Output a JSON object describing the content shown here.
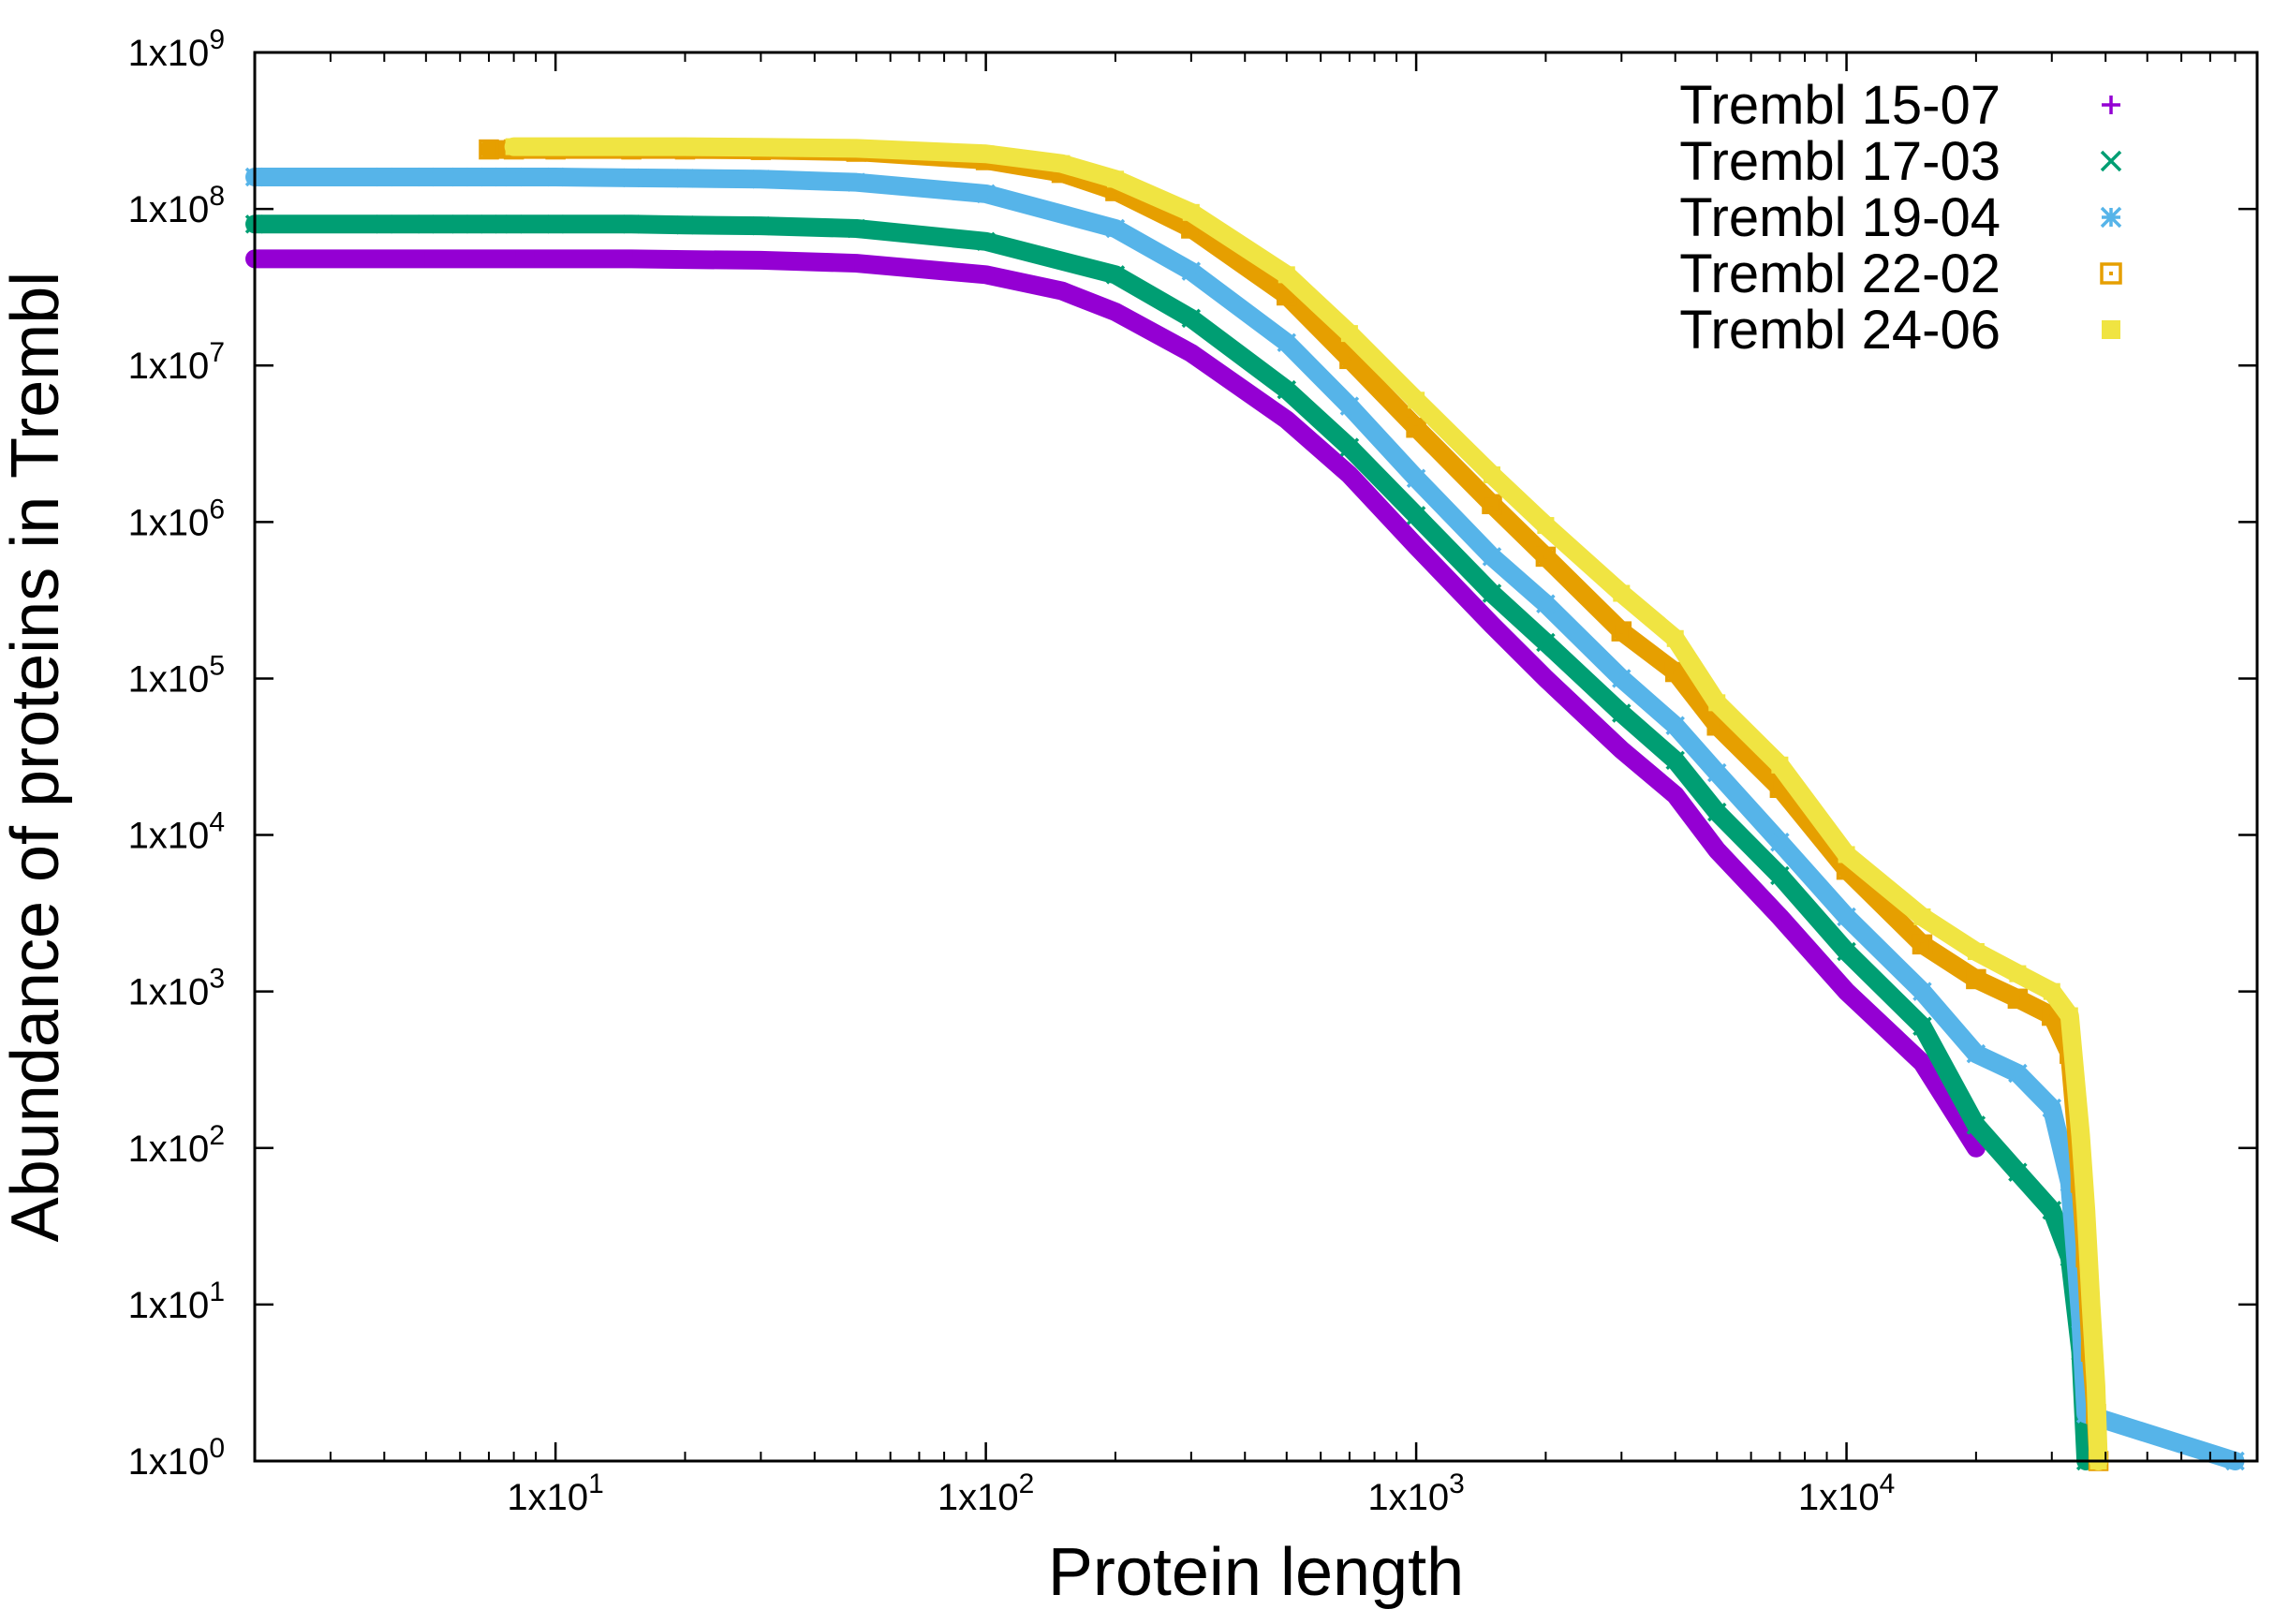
{
  "chart_data": {
    "type": "scatter",
    "title": "",
    "xlabel": "Protein length",
    "ylabel": "Abundance of proteins in Trembl",
    "xscale": "log",
    "yscale": "log",
    "xlim": [
      2,
      90000
    ],
    "ylim": [
      1,
      1000000000
    ],
    "x_ticks": [
      {
        "value": 10,
        "label": "1x10",
        "exp": "1"
      },
      {
        "value": 100,
        "label": "1x10",
        "exp": "2"
      },
      {
        "value": 1000,
        "label": "1x10",
        "exp": "3"
      },
      {
        "value": 10000,
        "label": "1x10",
        "exp": "4"
      }
    ],
    "y_ticks": [
      {
        "value": 1,
        "label": "1x10",
        "exp": "0"
      },
      {
        "value": 10,
        "label": "1x10",
        "exp": "1"
      },
      {
        "value": 100,
        "label": "1x10",
        "exp": "2"
      },
      {
        "value": 1000,
        "label": "1x10",
        "exp": "3"
      },
      {
        "value": 10000,
        "label": "1x10",
        "exp": "4"
      },
      {
        "value": 100000,
        "label": "1x10",
        "exp": "5"
      },
      {
        "value": 1000000,
        "label": "1x10",
        "exp": "6"
      },
      {
        "value": 10000000,
        "label": "1x10",
        "exp": "7"
      },
      {
        "value": 100000000,
        "label": "1x10",
        "exp": "8"
      },
      {
        "value": 1000000000,
        "label": "1x10",
        "exp": "9"
      }
    ],
    "legend_position": "top-right",
    "series": [
      {
        "name": "Trembl 15-07",
        "color": "#9400d3",
        "marker": "plus",
        "points": [
          [
            2,
            48000000
          ],
          [
            4,
            48000000
          ],
          [
            5,
            48000000
          ],
          [
            6,
            48000000
          ],
          [
            7,
            48000000
          ],
          [
            8,
            48000000
          ],
          [
            9,
            48000000
          ],
          [
            10,
            48000000
          ],
          [
            12,
            48000000
          ],
          [
            15,
            48000000
          ],
          [
            20,
            47500000
          ],
          [
            30,
            47000000
          ],
          [
            50,
            45000000
          ],
          [
            100,
            38000000
          ],
          [
            150,
            30000000
          ],
          [
            200,
            22000000
          ],
          [
            300,
            12000000
          ],
          [
            500,
            4500000
          ],
          [
            700,
            2000000
          ],
          [
            1000,
            700000
          ],
          [
            1500,
            220000
          ],
          [
            2000,
            100000
          ],
          [
            3000,
            35000
          ],
          [
            4000,
            18000
          ],
          [
            5000,
            8000
          ],
          [
            7000,
            3000
          ],
          [
            10000,
            1000
          ],
          [
            15000,
            350
          ],
          [
            20000,
            100
          ]
        ]
      },
      {
        "name": "Trembl 17-03",
        "color": "#009e73",
        "marker": "x",
        "points": [
          [
            2,
            80000000
          ],
          [
            4,
            80000000
          ],
          [
            5,
            80000000
          ],
          [
            6,
            80000000
          ],
          [
            7,
            80000000
          ],
          [
            8,
            80000000
          ],
          [
            10,
            80000000
          ],
          [
            15,
            80000000
          ],
          [
            20,
            79000000
          ],
          [
            30,
            78000000
          ],
          [
            50,
            75000000
          ],
          [
            100,
            62000000
          ],
          [
            200,
            38000000
          ],
          [
            300,
            20000000
          ],
          [
            500,
            7000000
          ],
          [
            700,
            3000000
          ],
          [
            1000,
            1100000
          ],
          [
            1500,
            350000
          ],
          [
            2000,
            170000
          ],
          [
            3000,
            60000
          ],
          [
            4000,
            30000
          ],
          [
            5000,
            14000
          ],
          [
            7000,
            5500
          ],
          [
            10000,
            1800
          ],
          [
            15000,
            600
          ],
          [
            20000,
            140
          ],
          [
            25000,
            70
          ],
          [
            30000,
            40
          ],
          [
            33000,
            20
          ],
          [
            35000,
            5
          ],
          [
            36000,
            1
          ]
        ]
      },
      {
        "name": "Trembl 19-04",
        "color": "#56b4e9",
        "marker": "star",
        "points": [
          [
            2,
            160000000
          ],
          [
            4,
            160000000
          ],
          [
            5,
            160000000
          ],
          [
            6,
            160000000
          ],
          [
            7,
            160000000
          ],
          [
            8,
            160000000
          ],
          [
            10,
            160000000
          ],
          [
            15,
            158000000
          ],
          [
            20,
            157000000
          ],
          [
            30,
            155000000
          ],
          [
            50,
            148000000
          ],
          [
            100,
            125000000
          ],
          [
            200,
            75000000
          ],
          [
            300,
            40000000
          ],
          [
            500,
            14000000
          ],
          [
            700,
            5500000
          ],
          [
            1000,
            1900000
          ],
          [
            1500,
            600000
          ],
          [
            2000,
            300000
          ],
          [
            3000,
            100000
          ],
          [
            4000,
            50000
          ],
          [
            5000,
            25000
          ],
          [
            7000,
            9000
          ],
          [
            10000,
            3000
          ],
          [
            15000,
            1000
          ],
          [
            20000,
            400
          ],
          [
            25000,
            300
          ],
          [
            30000,
            180
          ],
          [
            33000,
            60
          ],
          [
            35000,
            8
          ],
          [
            36000,
            2
          ],
          [
            80000,
            1
          ]
        ]
      },
      {
        "name": "Trembl 22-02",
        "color": "#e69f00",
        "marker": "open-square",
        "points": [
          [
            7,
            240000000
          ],
          [
            8,
            240000000
          ],
          [
            10,
            240000000
          ],
          [
            15,
            240000000
          ],
          [
            20,
            240000000
          ],
          [
            30,
            238000000
          ],
          [
            50,
            232000000
          ],
          [
            100,
            205000000
          ],
          [
            150,
            170000000
          ],
          [
            200,
            130000000
          ],
          [
            300,
            75000000
          ],
          [
            500,
            28000000
          ],
          [
            700,
            11000000
          ],
          [
            1000,
            4000000
          ],
          [
            1500,
            1300000
          ],
          [
            2000,
            600000
          ],
          [
            3000,
            200000
          ],
          [
            4000,
            110000
          ],
          [
            5000,
            50000
          ],
          [
            7000,
            20000
          ],
          [
            10000,
            6000
          ],
          [
            15000,
            2000
          ],
          [
            20000,
            1200
          ],
          [
            25000,
            900
          ],
          [
            30000,
            700
          ],
          [
            33000,
            400
          ],
          [
            35000,
            60
          ],
          [
            36000,
            20
          ],
          [
            37000,
            5
          ],
          [
            38000,
            2
          ],
          [
            38500,
            1
          ]
        ]
      },
      {
        "name": "Trembl 24-06",
        "color": "#f0e442",
        "marker": "filled-square",
        "points": [
          [
            8,
            250000000
          ],
          [
            10,
            250000000
          ],
          [
            15,
            250000000
          ],
          [
            20,
            250000000
          ],
          [
            30,
            248000000
          ],
          [
            50,
            244000000
          ],
          [
            100,
            225000000
          ],
          [
            150,
            195000000
          ],
          [
            200,
            155000000
          ],
          [
            300,
            95000000
          ],
          [
            500,
            38000000
          ],
          [
            700,
            16000000
          ],
          [
            1000,
            6000000
          ],
          [
            1500,
            2000000
          ],
          [
            2000,
            950000
          ],
          [
            3000,
            350000
          ],
          [
            4000,
            180000
          ],
          [
            5000,
            70000
          ],
          [
            7000,
            28000
          ],
          [
            10000,
            7500
          ],
          [
            15000,
            3000
          ],
          [
            20000,
            1800
          ],
          [
            25000,
            1300
          ],
          [
            30000,
            1000
          ],
          [
            33000,
            700
          ],
          [
            35000,
            120
          ],
          [
            36000,
            40
          ],
          [
            37000,
            10
          ],
          [
            38000,
            3
          ],
          [
            38500,
            1
          ]
        ]
      }
    ]
  }
}
